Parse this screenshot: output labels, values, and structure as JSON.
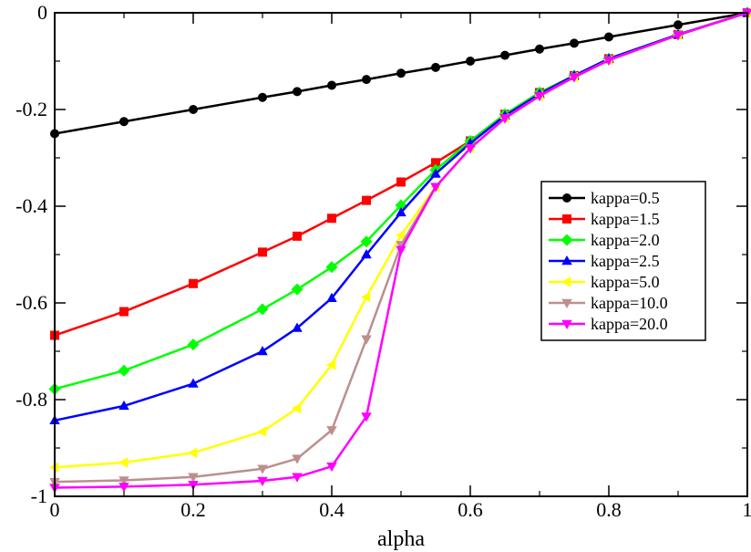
{
  "chart_data": {
    "type": "line",
    "title": "",
    "xlabel": "alpha",
    "ylabel": "",
    "xlim": [
      0,
      1
    ],
    "ylim": [
      -1,
      0
    ],
    "x_ticks": [
      0,
      0.2,
      0.4,
      0.6,
      0.8,
      1
    ],
    "x_tick_labels": [
      "0",
      "0.2",
      "0.4",
      "0.6",
      "0.8",
      "1"
    ],
    "y_ticks": [
      0,
      -0.2,
      -0.4,
      -0.6,
      -0.8,
      -1
    ],
    "y_tick_labels": [
      "0",
      "-0.2",
      "-0.4",
      "-0.6",
      "-0.8",
      "-1"
    ],
    "grid": false,
    "legend_position": "right",
    "x": [
      0,
      0.1,
      0.2,
      0.3,
      0.35,
      0.4,
      0.45,
      0.5,
      0.55,
      0.6,
      0.65,
      0.7,
      0.75,
      0.8,
      0.9,
      1.0
    ],
    "series": [
      {
        "name": "kappa=0.5",
        "color": "#000000",
        "marker": "circle",
        "values": [
          -0.25,
          -0.225,
          -0.2,
          -0.175,
          -0.163,
          -0.15,
          -0.138,
          -0.125,
          -0.113,
          -0.1,
          -0.088,
          -0.075,
          -0.063,
          -0.05,
          -0.025,
          0.0
        ]
      },
      {
        "name": "kappa=1.5",
        "color": "#ff0000",
        "marker": "square",
        "values": [
          -0.667,
          -0.618,
          -0.56,
          -0.495,
          -0.462,
          -0.425,
          -0.388,
          -0.35,
          -0.31,
          -0.265,
          -0.21,
          -0.165,
          -0.13,
          -0.095,
          -0.045,
          0.0
        ]
      },
      {
        "name": "kappa=2.0",
        "color": "#00ff00",
        "marker": "diamond",
        "values": [
          -0.778,
          -0.74,
          -0.686,
          -0.613,
          -0.572,
          -0.526,
          -0.473,
          -0.398,
          -0.325,
          -0.265,
          -0.21,
          -0.165,
          -0.13,
          -0.095,
          -0.045,
          0.0
        ]
      },
      {
        "name": "kappa=2.5",
        "color": "#0000ff",
        "marker": "triangle-up",
        "values": [
          -0.843,
          -0.813,
          -0.767,
          -0.7,
          -0.652,
          -0.59,
          -0.5,
          -0.413,
          -0.333,
          -0.27,
          -0.213,
          -0.168,
          -0.13,
          -0.095,
          -0.045,
          0.0
        ]
      },
      {
        "name": "kappa=5.0",
        "color": "#ffff00",
        "marker": "triangle-left",
        "values": [
          -0.94,
          -0.93,
          -0.91,
          -0.866,
          -0.818,
          -0.728,
          -0.588,
          -0.46,
          -0.36,
          -0.28,
          -0.218,
          -0.172,
          -0.133,
          -0.098,
          -0.046,
          0.0
        ]
      },
      {
        "name": "kappa=10.0",
        "color": "#bc8f8f",
        "marker": "triangle-down",
        "values": [
          -0.97,
          -0.967,
          -0.96,
          -0.943,
          -0.922,
          -0.863,
          -0.675,
          -0.48,
          -0.36,
          -0.28,
          -0.218,
          -0.172,
          -0.133,
          -0.098,
          -0.046,
          0.0
        ]
      },
      {
        "name": "kappa=20.0",
        "color": "#ff00ff",
        "marker": "triangle-down",
        "values": [
          -0.982,
          -0.98,
          -0.976,
          -0.968,
          -0.96,
          -0.938,
          -0.835,
          -0.49,
          -0.36,
          -0.28,
          -0.218,
          -0.172,
          -0.133,
          -0.098,
          -0.046,
          0.0
        ]
      }
    ]
  }
}
